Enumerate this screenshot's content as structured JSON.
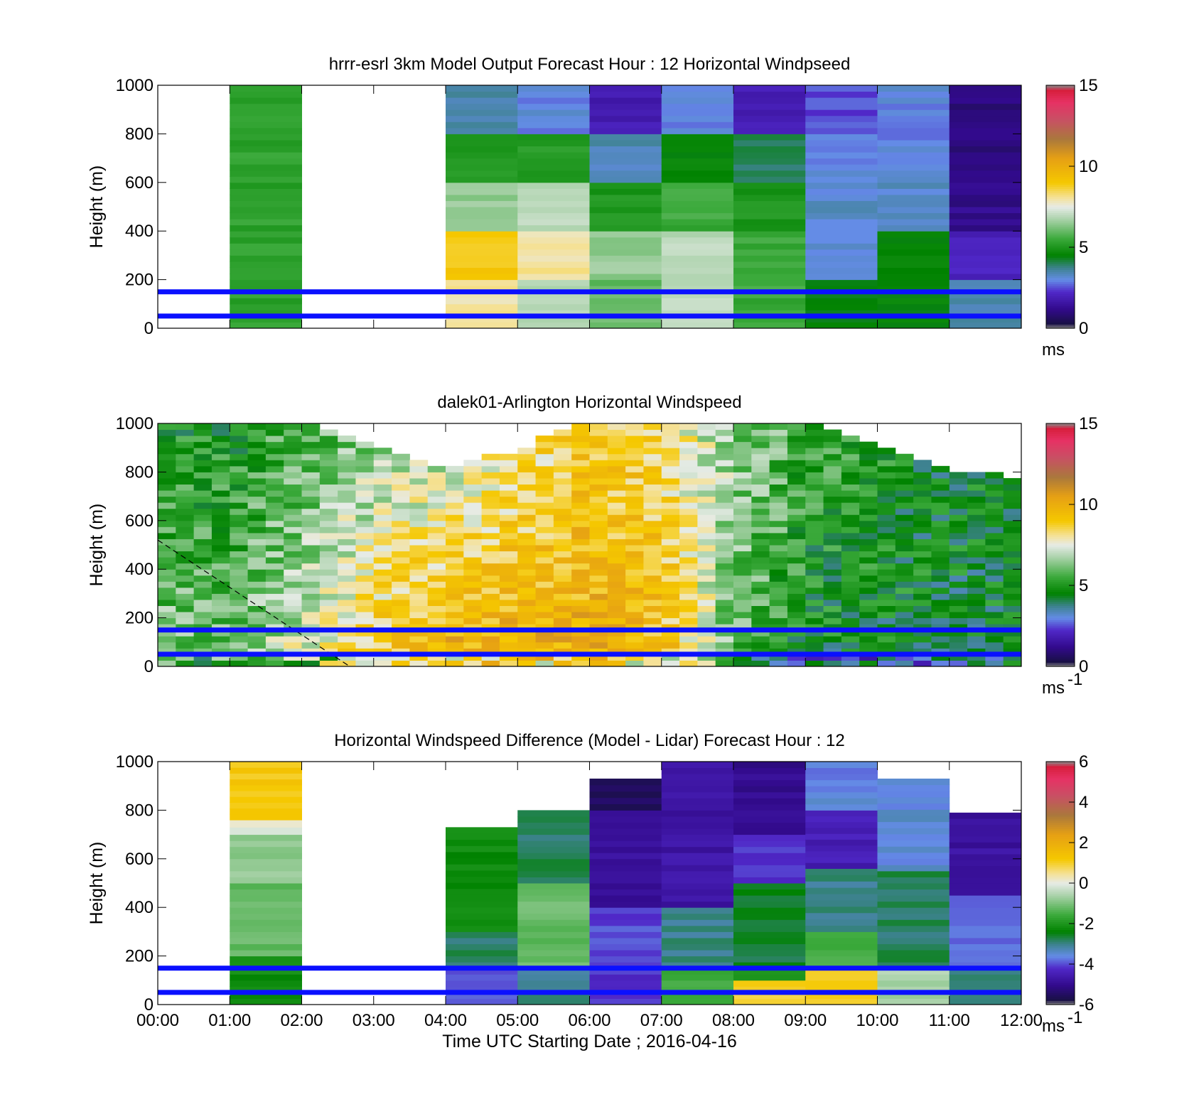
{
  "chart_data": [
    {
      "type": "heatmap",
      "title": "hrrr-esrl 3km Model Output   Forecast Hour : 12 Horizontal Windpseed",
      "ylabel": "Height (m)",
      "ylim": [
        0,
        1000
      ],
      "yticks": [
        "0",
        "200",
        "400",
        "600",
        "800",
        "1000"
      ],
      "x_range": [
        "00:00",
        "12:00"
      ],
      "colorbar": {
        "min": 0,
        "max": 15,
        "ticks": [
          "0",
          "5",
          "10",
          "15"
        ],
        "unit": "ms",
        "unit_sup": ""
      },
      "reference_lines_m": [
        50,
        150
      ],
      "columns": [
        {
          "hour": 0,
          "profile": []
        },
        {
          "hour": 1,
          "profile": [
            [
              0,
              1000,
              5.3
            ]
          ]
        },
        {
          "hour": 2,
          "profile": []
        },
        {
          "hour": 3,
          "profile": []
        },
        {
          "hour": 4,
          "profile": [
            [
              0,
              200,
              8.0
            ],
            [
              200,
              400,
              9.0
            ],
            [
              400,
              600,
              6.5
            ],
            [
              600,
              800,
              5.0
            ],
            [
              800,
              1000,
              3.5
            ]
          ]
        },
        {
          "hour": 5,
          "profile": [
            [
              0,
              200,
              7.0
            ],
            [
              200,
              400,
              8.0
            ],
            [
              400,
              600,
              7.0
            ],
            [
              600,
              800,
              5.2
            ],
            [
              800,
              1000,
              3.0
            ]
          ]
        },
        {
          "hour": 6,
          "profile": [
            [
              0,
              200,
              6.0
            ],
            [
              200,
              400,
              6.5
            ],
            [
              400,
              600,
              5.0
            ],
            [
              600,
              800,
              3.4
            ],
            [
              800,
              1000,
              1.8
            ]
          ]
        },
        {
          "hour": 7,
          "profile": [
            [
              0,
              200,
              7.0
            ],
            [
              200,
              400,
              7.0
            ],
            [
              400,
              600,
              5.5
            ],
            [
              600,
              800,
              4.5
            ],
            [
              800,
              1000,
              3.0
            ]
          ]
        },
        {
          "hour": 8,
          "profile": [
            [
              0,
              200,
              5.5
            ],
            [
              200,
              400,
              5.5
            ],
            [
              400,
              600,
              5.0
            ],
            [
              600,
              800,
              4.0
            ],
            [
              800,
              1000,
              1.8
            ]
          ]
        },
        {
          "hour": 9,
          "profile": [
            [
              0,
              200,
              4.5
            ],
            [
              200,
              400,
              3.2
            ],
            [
              400,
              600,
              3.2
            ],
            [
              600,
              800,
              3.0
            ],
            [
              800,
              1000,
              2.5
            ]
          ]
        },
        {
          "hour": 10,
          "profile": [
            [
              0,
              200,
              4.5
            ],
            [
              200,
              400,
              4.5
            ],
            [
              400,
              600,
              3.2
            ],
            [
              600,
              800,
              3.0
            ],
            [
              800,
              1000,
              3.0
            ]
          ]
        },
        {
          "hour": 11,
          "profile": [
            [
              0,
              200,
              3.5
            ],
            [
              200,
              400,
              2.0
            ],
            [
              400,
              600,
              1.2
            ],
            [
              600,
              800,
              1.0
            ],
            [
              800,
              1000,
              1.0
            ]
          ]
        }
      ]
    },
    {
      "type": "heatmap",
      "title": "dalek01-Arlington  Horizontal Windspeed",
      "ylabel": "Height (m)",
      "ylim": [
        0,
        1000
      ],
      "yticks": [
        "0",
        "200",
        "400",
        "600",
        "800",
        "1000"
      ],
      "x_range": [
        "00:00",
        "12:00"
      ],
      "colorbar": {
        "min": 0,
        "max": 15,
        "ticks": [
          "0",
          "5",
          "10",
          "15"
        ],
        "unit": "ms",
        "unit_sup": "-1"
      },
      "reference_lines_m": [
        50,
        150
      ],
      "slant_line": {
        "from": [
          "00:00",
          520
        ],
        "to": [
          "02:40",
          0
        ]
      },
      "x_hours": [
        0,
        1,
        2,
        3,
        4,
        5,
        6,
        7,
        8,
        9,
        10,
        11,
        12
      ],
      "speed_low_m": [
        6.5,
        6.0,
        7.5,
        9.0,
        10.0,
        10.0,
        10.0,
        9.5,
        6.0,
        4.5,
        4.5,
        4.5,
        4.5
      ],
      "speed_high_m": [
        5.0,
        5.0,
        5.8,
        6.5,
        7.0,
        8.0,
        9.0,
        8.5,
        6.5,
        5.5,
        5.0,
        4.5,
        4.5
      ],
      "data_top_m": [
        1000,
        1000,
        1000,
        900,
        800,
        880,
        1000,
        1000,
        1000,
        1000,
        900,
        800,
        760
      ]
    },
    {
      "type": "heatmap",
      "title": "Horizontal Windspeed Difference (Model - Lidar) Forecast Hour : 12",
      "ylabel": "Height (m)",
      "xlabel": "Time UTC  Starting Date ; 2016-04-16",
      "ylim": [
        0,
        1000
      ],
      "yticks": [
        "0",
        "200",
        "400",
        "600",
        "800",
        "1000"
      ],
      "xticks": [
        "00:00",
        "01:00",
        "02:00",
        "03:00",
        "04:00",
        "05:00",
        "06:00",
        "07:00",
        "08:00",
        "09:00",
        "10:00",
        "11:00",
        "12:00"
      ],
      "colorbar": {
        "min": -6,
        "max": 6,
        "ticks": [
          "-6",
          "-4",
          "-2",
          "0",
          "2",
          "4",
          "6"
        ],
        "unit": "ms",
        "unit_sup": "-1"
      },
      "reference_lines_m": [
        50,
        150
      ],
      "columns": [
        {
          "hour": 0,
          "profile": []
        },
        {
          "hour": 1,
          "profile": [
            [
              0,
              200,
              -2.2
            ],
            [
              200,
              500,
              -1.2
            ],
            [
              500,
              700,
              -0.8
            ],
            [
              700,
              760,
              0.0
            ],
            [
              760,
              1000,
              1.2
            ]
          ]
        },
        {
          "hour": 2,
          "profile": []
        },
        {
          "hour": 3,
          "profile": []
        },
        {
          "hour": 4,
          "profile": [
            [
              0,
              150,
              -4.0
            ],
            [
              150,
              300,
              -2.8
            ],
            [
              300,
              730,
              -2.2
            ]
          ]
        },
        {
          "hour": 5,
          "profile": [
            [
              0,
              150,
              -3.0
            ],
            [
              150,
              500,
              -1.2
            ],
            [
              500,
              800,
              -2.8
            ]
          ]
        },
        {
          "hour": 6,
          "profile": [
            [
              0,
              150,
              -4.2
            ],
            [
              150,
              400,
              -4.0
            ],
            [
              400,
              800,
              -4.8
            ],
            [
              800,
              930,
              -5.5
            ]
          ]
        },
        {
          "hour": 7,
          "profile": [
            [
              0,
              150,
              -1.5
            ],
            [
              150,
              400,
              -3.0
            ],
            [
              400,
              1000,
              -4.7
            ]
          ]
        },
        {
          "hour": 8,
          "profile": [
            [
              0,
              100,
              1.0
            ],
            [
              100,
              150,
              -2.0
            ],
            [
              150,
              500,
              -2.6
            ],
            [
              500,
              700,
              -4.2
            ],
            [
              700,
              1000,
              -5.0
            ]
          ]
        },
        {
          "hour": 9,
          "profile": [
            [
              0,
              150,
              1.0
            ],
            [
              150,
              300,
              -1.5
            ],
            [
              300,
              560,
              -3.0
            ],
            [
              560,
              800,
              -4.5
            ],
            [
              800,
              1000,
              -3.6
            ]
          ]
        },
        {
          "hour": 10,
          "profile": [
            [
              0,
              150,
              -0.6
            ],
            [
              150,
              550,
              -2.8
            ],
            [
              550,
              930,
              -3.5
            ]
          ]
        },
        {
          "hour": 11,
          "profile": [
            [
              0,
              150,
              -3.0
            ],
            [
              150,
              450,
              -3.8
            ],
            [
              450,
              790,
              -4.8
            ]
          ]
        }
      ]
    }
  ]
}
